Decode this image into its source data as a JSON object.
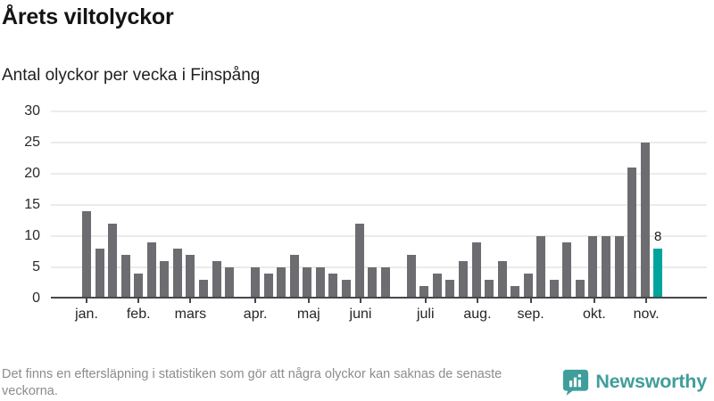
{
  "header": {
    "title": "Årets viltolyckor",
    "subtitle": "Antal olyckor per vecka i Finspång"
  },
  "chart_data": {
    "type": "bar",
    "title": "Årets viltolyckor",
    "subtitle": "Antal olyckor per vecka i Finspång",
    "x_unit": "vecka",
    "values": [
      14,
      8,
      12,
      7,
      4,
      9,
      6,
      8,
      7,
      3,
      6,
      5,
      0,
      5,
      4,
      5,
      7,
      5,
      5,
      4,
      3,
      12,
      5,
      5,
      0,
      7,
      2,
      4,
      3,
      6,
      9,
      3,
      6,
      2,
      4,
      10,
      3,
      9,
      3,
      10,
      10,
      10,
      21,
      25,
      8
    ],
    "highlight_index": 44,
    "highlight_label": "8",
    "yticks": [
      0,
      5,
      10,
      15,
      20,
      25,
      30
    ],
    "ylim": [
      0,
      30
    ],
    "months": [
      {
        "label": "jan.",
        "week": 1
      },
      {
        "label": "feb.",
        "week": 5
      },
      {
        "label": "mars",
        "week": 9
      },
      {
        "label": "apr.",
        "week": 14
      },
      {
        "label": "maj",
        "week": 18.1
      },
      {
        "label": "juni",
        "week": 22.1
      },
      {
        "label": "juli",
        "week": 27.1
      },
      {
        "label": "aug.",
        "week": 31.1
      },
      {
        "label": "sep.",
        "week": 35.2
      },
      {
        "label": "okt.",
        "week": 40.1
      },
      {
        "label": "nov.",
        "week": 44.1
      }
    ],
    "bar_color": "#6d6d71",
    "highlight_color": "#00a49c",
    "grid": true,
    "legend": "none"
  },
  "footer": {
    "note": "Det finns en eftersläpning i statistiken som gör att några olyckor kan saknas de senaste veckorna.",
    "brand": "Newsworthy",
    "brand_color": "#3f9e9b"
  }
}
